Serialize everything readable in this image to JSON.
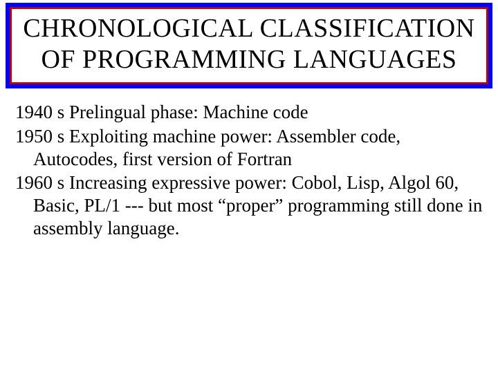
{
  "slide": {
    "background_color": "#ffffff",
    "title": {
      "text": "CHRONOLOGICAL CLASSIFICATION OF PROGRAMMING LANGUAGES",
      "outer_bg": "#0000ff",
      "border_color": "#c00000",
      "inner_bg": "#ffffff",
      "font_size": 38,
      "color": "#000000"
    },
    "body": {
      "font_size": 27,
      "color": "#000000",
      "items": [
        "1940 s Prelingual phase: Machine code",
        "1950 s Exploiting machine power: Assembler code, Autocodes, first version of Fortran",
        "1960 s Increasing expressive power: Cobol, Lisp, Algol 60, Basic, PL/1 --- but most “proper” programming still done in assembly language."
      ]
    }
  }
}
